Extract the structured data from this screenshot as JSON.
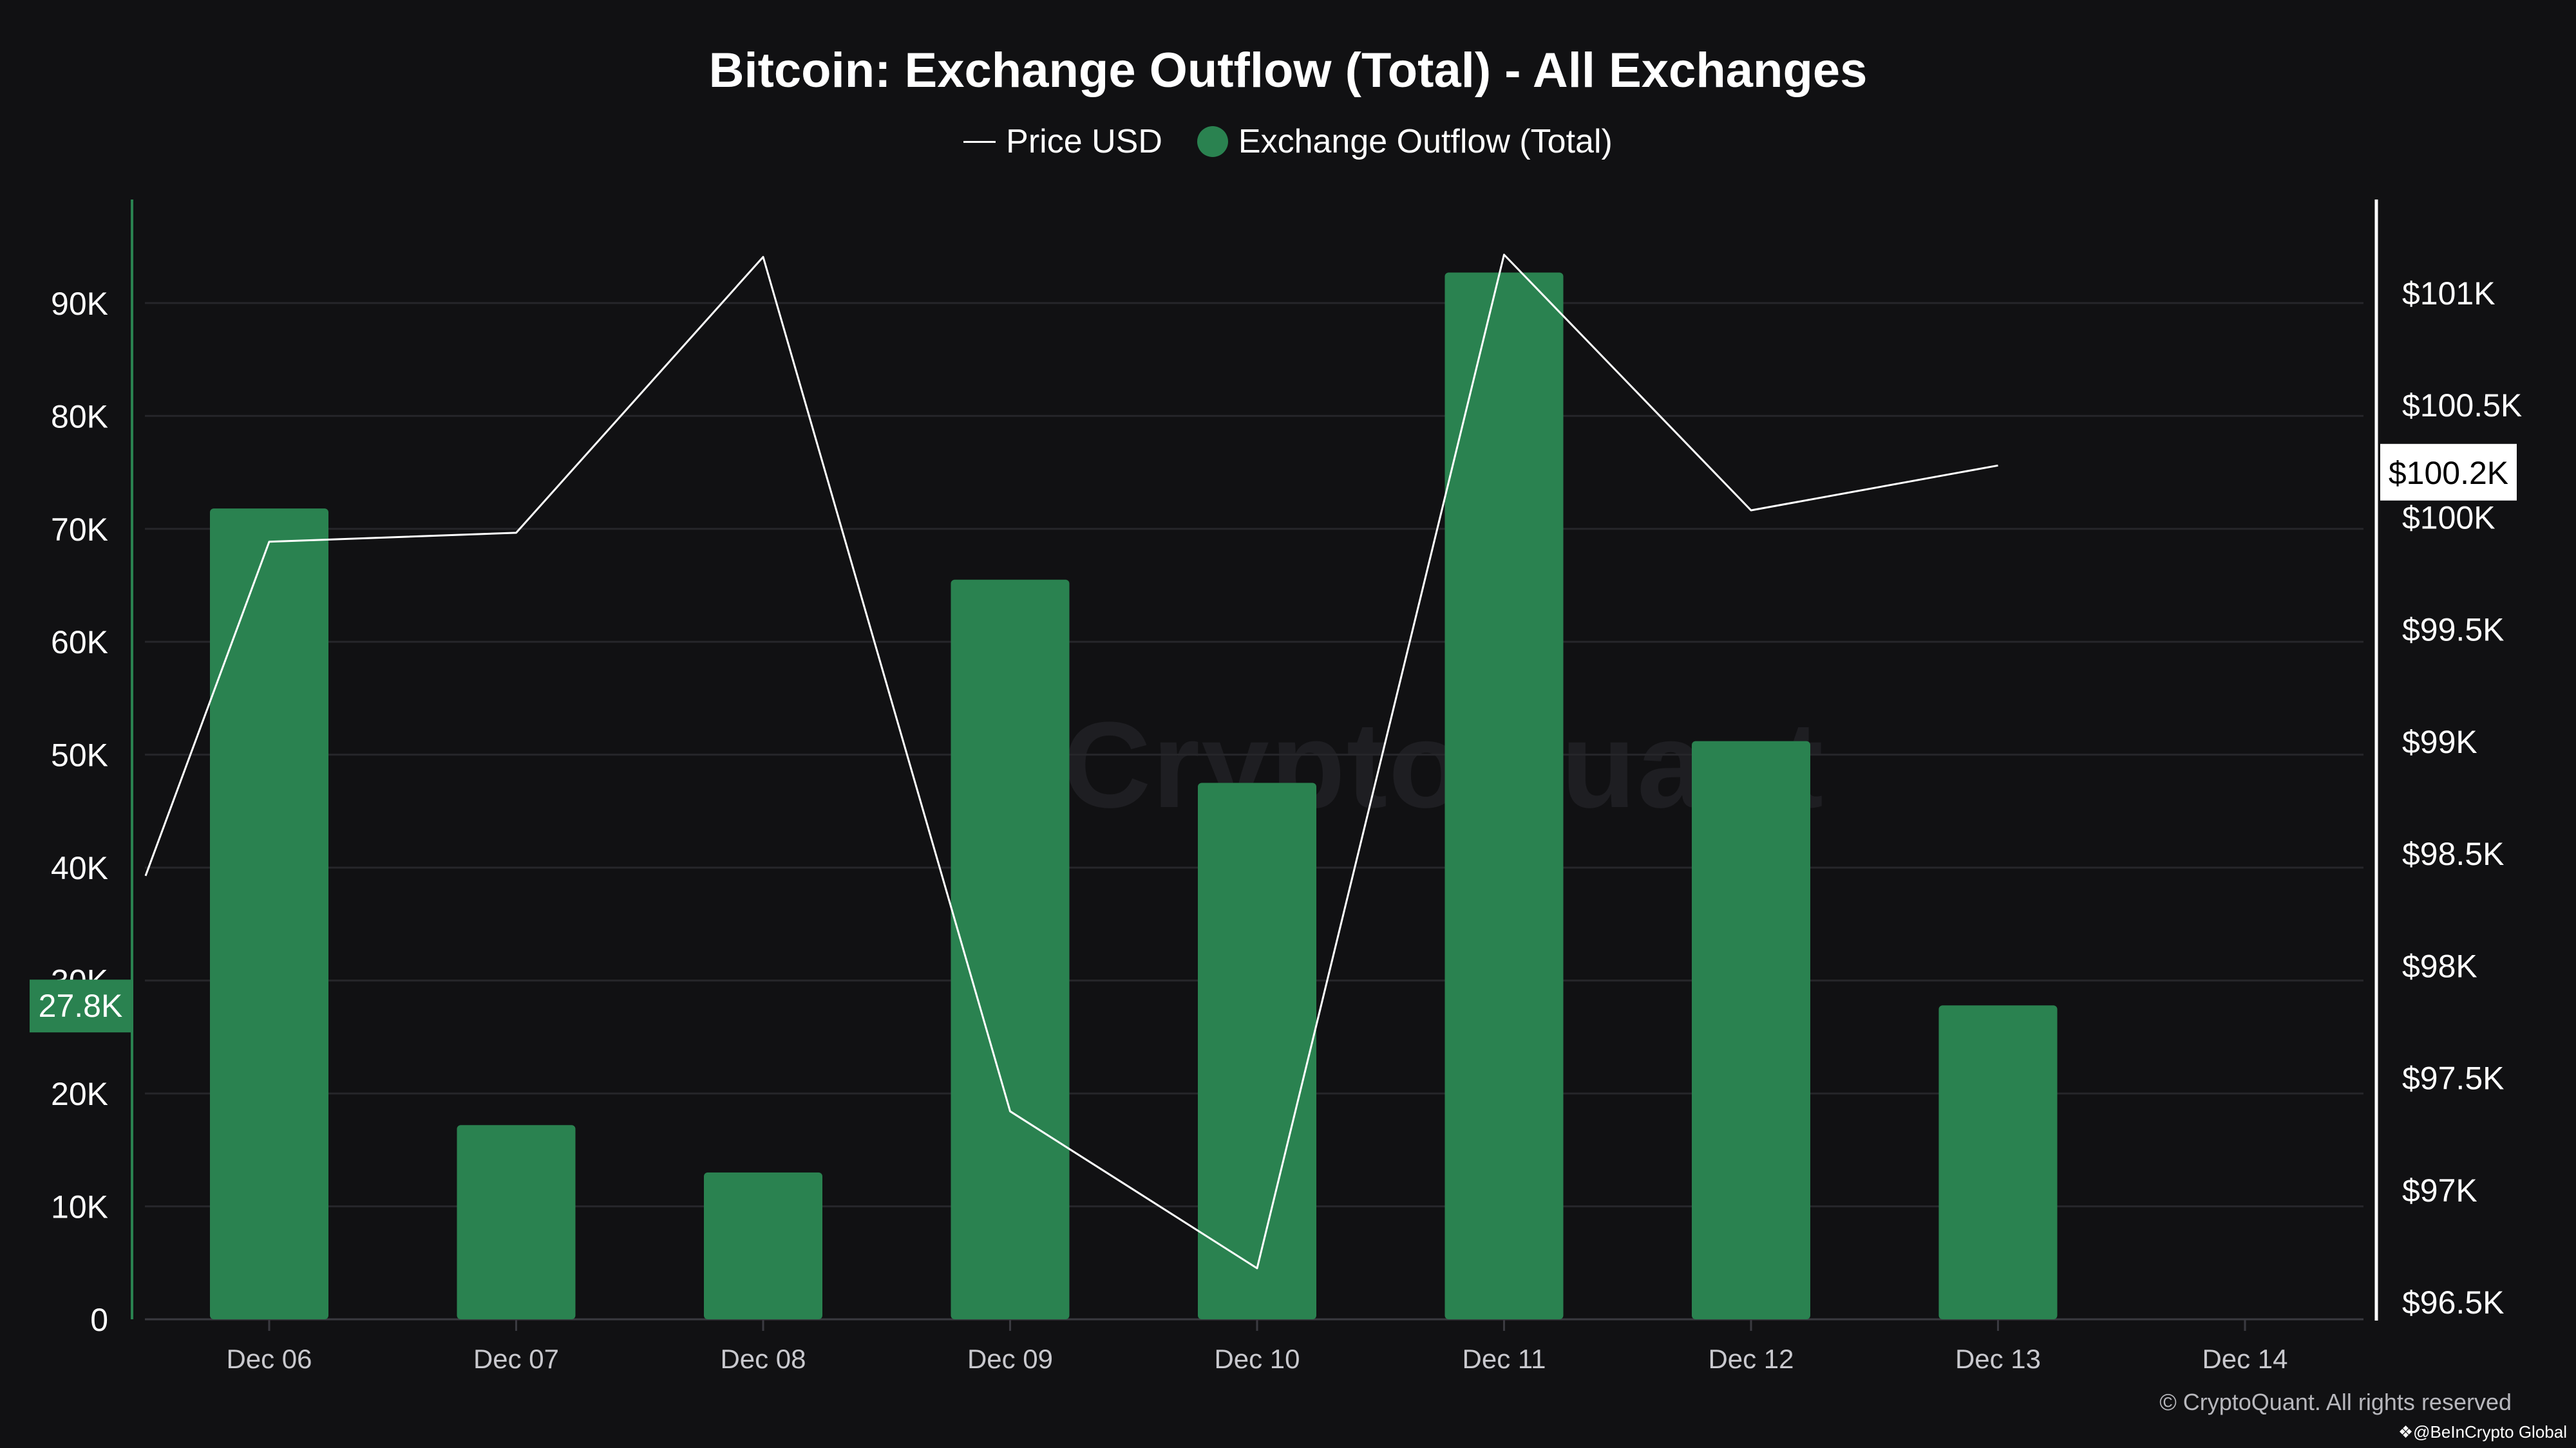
{
  "chart_data": {
    "type": "bar",
    "title": "Bitcoin: Exchange Outflow (Total) - All Exchanges",
    "legend": [
      {
        "name": "Price USD",
        "kind": "line",
        "color": "#ffffff"
      },
      {
        "name": "Exchange Outflow (Total)",
        "kind": "bar",
        "color": "#2a8250"
      }
    ],
    "categories": [
      "Dec 06",
      "Dec 07",
      "Dec 08",
      "Dec 09",
      "Dec 10",
      "Dec 11",
      "Dec 12",
      "Dec 13",
      "Dec 14"
    ],
    "series": [
      {
        "name": "Exchange Outflow (Total)",
        "type": "bar",
        "axis": "left",
        "values": [
          71800,
          17200,
          13000,
          65500,
          47500,
          92700,
          51200,
          27800,
          null
        ]
      },
      {
        "name": "Price USD",
        "type": "line",
        "axis": "right",
        "points": [
          {
            "x": "Dec 05 12:00",
            "y": 98400
          },
          {
            "x": "Dec 06",
            "y": 99890
          },
          {
            "x": "Dec 07",
            "y": 99930
          },
          {
            "x": "Dec 08",
            "y": 101160
          },
          {
            "x": "Dec 09",
            "y": 97350
          },
          {
            "x": "Dec 10",
            "y": 96650
          },
          {
            "x": "Dec 11",
            "y": 101170
          },
          {
            "x": "Dec 12",
            "y": 100030
          },
          {
            "x": "Dec 13",
            "y": 100230
          }
        ]
      }
    ],
    "y_left": {
      "ticks": [
        "0",
        "10K",
        "20K",
        "30K",
        "40K",
        "50K",
        "60K",
        "70K",
        "80K",
        "90K"
      ],
      "tick_values": [
        0,
        10000,
        20000,
        30000,
        40000,
        50000,
        60000,
        70000,
        80000,
        90000
      ],
      "range": [
        0,
        97000
      ],
      "marker_label": "27.8K",
      "marker_value": 27800
    },
    "y_right": {
      "ticks": [
        "$96.5K",
        "$97K",
        "$97.5K",
        "$98K",
        "$98.5K",
        "$99K",
        "$99.5K",
        "$100K",
        "$100.5K",
        "$101K"
      ],
      "tick_values": [
        96500,
        97000,
        97500,
        98000,
        98500,
        99000,
        99500,
        100000,
        100500,
        101000
      ],
      "range": [
        96500,
        101500
      ],
      "marker_label": "$100.2K",
      "marker_value": 100200
    },
    "grid": "horizontal",
    "legend_position": "top-center"
  },
  "watermark": "CryptoQuant",
  "footer": {
    "copyright": "© CryptoQuant. All rights reserved",
    "credit": "❖@BeInCrypto Global"
  },
  "colors": {
    "background": "#111113",
    "bar": "#2a8250",
    "price_line": "#ffffff",
    "grid": "#26262a",
    "tick_text": "#ffffff",
    "x_tick_text": "#c9c9ce",
    "left_marker_bg": "#2a8250",
    "right_marker_bg": "#ffffff",
    "right_marker_text": "#000000"
  }
}
